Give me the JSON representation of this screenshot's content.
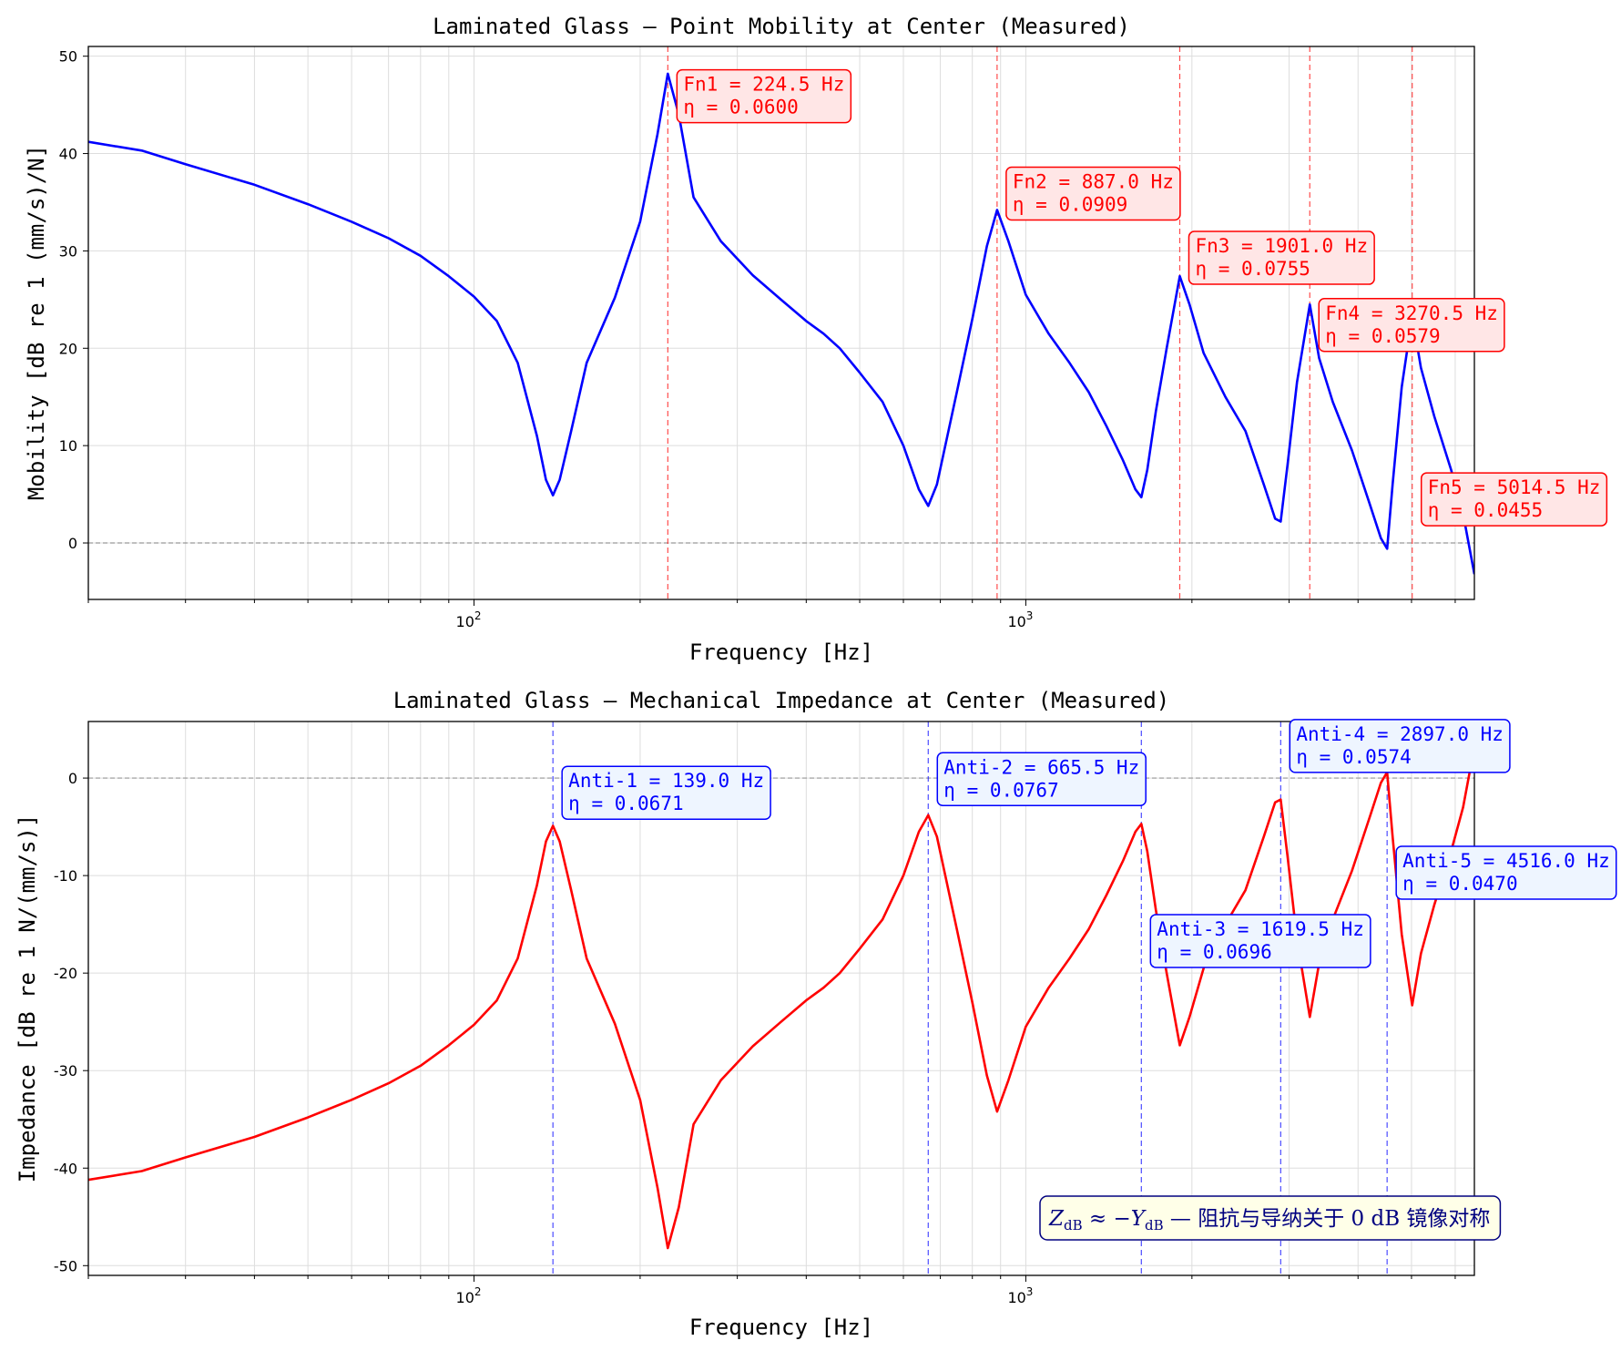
{
  "chart_data": [
    {
      "type": "line",
      "title": "Laminated Glass — Point Mobility at Center (Measured)",
      "xlabel": "Frequency [Hz]",
      "ylabel": "Mobility [dB re 1 (mm/s)/N]",
      "xscale": "log",
      "xlim": [
        20,
        6500
      ],
      "ylim": [
        -5.8,
        51
      ],
      "yticks": [
        0,
        10,
        20,
        30,
        40,
        50
      ],
      "xticks": [
        {
          "value": 100,
          "base": "10",
          "exp": "2"
        },
        {
          "value": 1000,
          "base": "10",
          "exp": "3"
        }
      ],
      "grid": true,
      "reference_line": 0,
      "line_color": "#0000ff",
      "annotation_color": "#ff0000",
      "annotation_bg": "#ffe6e6",
      "series": [
        {
          "values": [
            [
              20,
              41.2
            ],
            [
              25,
              40.3
            ],
            [
              30,
              38.9
            ],
            [
              40,
              36.8
            ],
            [
              50,
              34.8
            ],
            [
              60,
              33.0
            ],
            [
              70,
              31.3
            ],
            [
              80,
              29.5
            ],
            [
              90,
              27.4
            ],
            [
              100,
              25.3
            ],
            [
              110,
              22.8
            ],
            [
              120,
              18.5
            ],
            [
              130,
              11.0
            ],
            [
              135,
              6.5
            ],
            [
              139,
              4.9
            ],
            [
              143,
              6.5
            ],
            [
              150,
              11.5
            ],
            [
              160,
              18.5
            ],
            [
              180,
              25.2
            ],
            [
              200,
              33.0
            ],
            [
              215,
              42.0
            ],
            [
              224.5,
              48.2
            ],
            [
              235,
              44.0
            ],
            [
              250,
              35.5
            ],
            [
              280,
              31.0
            ],
            [
              320,
              27.5
            ],
            [
              360,
              25.0
            ],
            [
              400,
              22.8
            ],
            [
              430,
              21.5
            ],
            [
              460,
              20.0
            ],
            [
              500,
              17.5
            ],
            [
              550,
              14.5
            ],
            [
              600,
              10.0
            ],
            [
              640,
              5.5
            ],
            [
              665.5,
              3.8
            ],
            [
              690,
              6.0
            ],
            [
              750,
              15.5
            ],
            [
              800,
              23.0
            ],
            [
              850,
              30.5
            ],
            [
              887,
              34.2
            ],
            [
              930,
              31.0
            ],
            [
              1000,
              25.5
            ],
            [
              1100,
              21.5
            ],
            [
              1200,
              18.5
            ],
            [
              1300,
              15.5
            ],
            [
              1400,
              12.0
            ],
            [
              1500,
              8.5
            ],
            [
              1580,
              5.5
            ],
            [
              1619.5,
              4.7
            ],
            [
              1660,
              7.5
            ],
            [
              1720,
              13.5
            ],
            [
              1800,
              20.0
            ],
            [
              1901,
              27.4
            ],
            [
              1980,
              24.5
            ],
            [
              2100,
              19.5
            ],
            [
              2300,
              15.0
            ],
            [
              2500,
              11.5
            ],
            [
              2700,
              6.0
            ],
            [
              2830,
              2.5
            ],
            [
              2897,
              2.2
            ],
            [
              2980,
              8.0
            ],
            [
              3100,
              16.5
            ],
            [
              3270.5,
              24.5
            ],
            [
              3400,
              19.0
            ],
            [
              3600,
              14.5
            ],
            [
              3900,
              9.5
            ],
            [
              4200,
              4.0
            ],
            [
              4400,
              0.5
            ],
            [
              4516,
              -0.6
            ],
            [
              4620,
              6.0
            ],
            [
              4800,
              16.0
            ],
            [
              5014.5,
              23.3
            ],
            [
              5200,
              18.0
            ],
            [
              5500,
              13.0
            ],
            [
              5900,
              7.5
            ],
            [
              6200,
              3.0
            ],
            [
              6500,
              -3.2
            ]
          ]
        }
      ],
      "annotations": [
        {
          "label": "Fn1 = 224.5 Hz",
          "eta": " η = 0.0600",
          "freq": 224.5,
          "box_y": 48.6
        },
        {
          "label": "Fn2 = 887.0 Hz",
          "eta": " η = 0.0909",
          "freq": 887.0,
          "box_y": 38.6
        },
        {
          "label": "Fn3 = 1901.0 Hz",
          "eta": " η = 0.0755",
          "freq": 1901.0,
          "box_y": 32.0
        },
        {
          "label": "Fn4 = 3270.5 Hz",
          "eta": " η = 0.0579",
          "freq": 3270.5,
          "box_y": 25.1
        },
        {
          "label": "Fn5 = 5014.5 Hz",
          "eta": " η = 0.0455",
          "freq": 5014.5,
          "box_y": 7.2
        }
      ]
    },
    {
      "type": "line",
      "title": "Laminated Glass — Mechanical Impedance at Center (Measured)",
      "xlabel": "Frequency [Hz]",
      "ylabel": "Impedance [dB re 1 N/(mm/s)]",
      "xscale": "log",
      "xlim": [
        20,
        6500
      ],
      "ylim": [
        -51,
        5.8
      ],
      "yticks": [
        -50,
        -40,
        -30,
        -20,
        -10,
        0
      ],
      "xticks": [
        {
          "value": 100,
          "base": "10",
          "exp": "2"
        },
        {
          "value": 1000,
          "base": "10",
          "exp": "3"
        }
      ],
      "grid": true,
      "reference_line": 0,
      "line_color": "#ff0000",
      "annotation_color": "#0000ff",
      "annotation_bg": "#eef5ff",
      "series": [
        {
          "values": [
            [
              20,
              -41.2
            ],
            [
              25,
              -40.3
            ],
            [
              30,
              -38.9
            ],
            [
              40,
              -36.8
            ],
            [
              50,
              -34.8
            ],
            [
              60,
              -33.0
            ],
            [
              70,
              -31.3
            ],
            [
              80,
              -29.5
            ],
            [
              90,
              -27.4
            ],
            [
              100,
              -25.3
            ],
            [
              110,
              -22.8
            ],
            [
              120,
              -18.5
            ],
            [
              130,
              -11.0
            ],
            [
              135,
              -6.5
            ],
            [
              139,
              -4.9
            ],
            [
              143,
              -6.5
            ],
            [
              150,
              -11.5
            ],
            [
              160,
              -18.5
            ],
            [
              180,
              -25.2
            ],
            [
              200,
              -33.0
            ],
            [
              215,
              -42.0
            ],
            [
              224.5,
              -48.2
            ],
            [
              235,
              -44.0
            ],
            [
              250,
              -35.5
            ],
            [
              280,
              -31.0
            ],
            [
              320,
              -27.5
            ],
            [
              360,
              -25.0
            ],
            [
              400,
              -22.8
            ],
            [
              430,
              -21.5
            ],
            [
              460,
              -20.0
            ],
            [
              500,
              -17.5
            ],
            [
              550,
              -14.5
            ],
            [
              600,
              -10.0
            ],
            [
              640,
              -5.5
            ],
            [
              665.5,
              -3.8
            ],
            [
              690,
              -6.0
            ],
            [
              750,
              -15.5
            ],
            [
              800,
              -23.0
            ],
            [
              850,
              -30.5
            ],
            [
              887,
              -34.2
            ],
            [
              930,
              -31.0
            ],
            [
              1000,
              -25.5
            ],
            [
              1100,
              -21.5
            ],
            [
              1200,
              -18.5
            ],
            [
              1300,
              -15.5
            ],
            [
              1400,
              -12.0
            ],
            [
              1500,
              -8.5
            ],
            [
              1580,
              -5.5
            ],
            [
              1619.5,
              -4.7
            ],
            [
              1660,
              -7.5
            ],
            [
              1720,
              -13.5
            ],
            [
              1800,
              -20.0
            ],
            [
              1901,
              -27.4
            ],
            [
              1980,
              -24.5
            ],
            [
              2100,
              -19.5
            ],
            [
              2300,
              -15.0
            ],
            [
              2500,
              -11.5
            ],
            [
              2700,
              -6.0
            ],
            [
              2830,
              -2.5
            ],
            [
              2897,
              -2.2
            ],
            [
              2980,
              -8.0
            ],
            [
              3100,
              -16.5
            ],
            [
              3270.5,
              -24.5
            ],
            [
              3400,
              -19.0
            ],
            [
              3600,
              -14.5
            ],
            [
              3900,
              -9.5
            ],
            [
              4200,
              -4.0
            ],
            [
              4400,
              -0.5
            ],
            [
              4516,
              0.6
            ],
            [
              4620,
              -6.0
            ],
            [
              4800,
              -16.0
            ],
            [
              5014.5,
              -23.3
            ],
            [
              5200,
              -18.0
            ],
            [
              5500,
              -13.0
            ],
            [
              5900,
              -7.5
            ],
            [
              6200,
              -3.0
            ],
            [
              6500,
              3.2
            ]
          ]
        }
      ],
      "annotations": [
        {
          "label": "Anti-1 = 139.0 Hz",
          "eta": " η = 0.0671",
          "freq": 139.0,
          "box_y": 1.2
        },
        {
          "label": "Anti-2 = 665.5 Hz",
          "eta": " η = 0.0767",
          "freq": 665.5,
          "box_y": 2.6
        },
        {
          "label": "Anti-3 = 1619.5 Hz",
          "eta": " η = 0.0696",
          "freq": 1619.5,
          "box_y": -14.0
        },
        {
          "label": "Anti-4 = 2897.0 Hz",
          "eta": " η = 0.0574",
          "freq": 2897.0,
          "box_y": 6.0
        },
        {
          "label": "Anti-5 = 4516.0 Hz",
          "eta": " η = 0.0470",
          "freq": 4516.0,
          "box_y": -7.0
        }
      ],
      "note": {
        "z": "Z",
        "z_sub": "dB",
        "approx": " ≈ −",
        "y": "Y",
        "y_sub": "dB",
        "rest": " —  阻抗与导纳关于 0 dB 镜像对称"
      }
    }
  ]
}
